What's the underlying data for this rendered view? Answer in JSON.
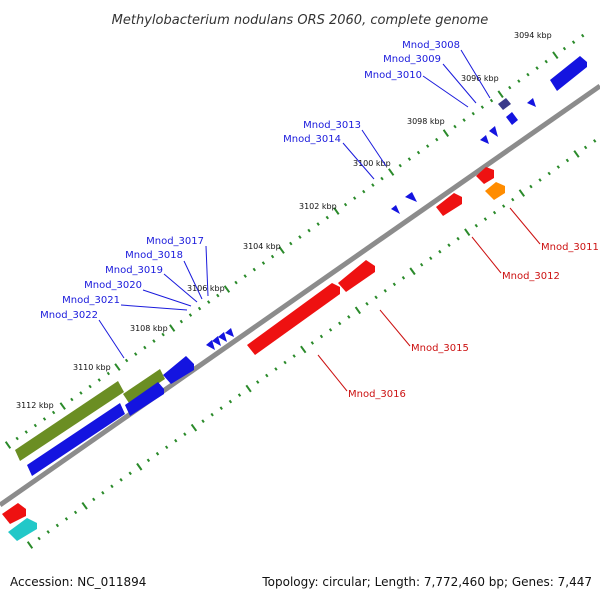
{
  "title": "Methylobacterium nodulans ORS 2060, complete genome",
  "footer": {
    "accession": "Accession: NC_011894",
    "summary": "Topology: circular; Length: 7,772,460 bp; Genes: 7,447"
  },
  "colors": {
    "backbone": "#8c8c8c",
    "tick": "#2a8a2a",
    "gene_blue": "#1414e0",
    "gene_red": "#ee1111",
    "gene_olive": "#6b8e23",
    "gene_orange": "#ff8c00",
    "gene_navy": "#3b3b8a",
    "gene_cyan": "#22c8c8",
    "label_blue": "#1a1adc",
    "label_red": "#cc1111"
  },
  "ticks": [
    {
      "kbp": 3094,
      "label": "3094 kbp"
    },
    {
      "kbp": 3096,
      "label": "3096 kbp"
    },
    {
      "kbp": 3098,
      "label": "3098 kbp"
    },
    {
      "kbp": 3100,
      "label": "3100 kbp"
    },
    {
      "kbp": 3102,
      "label": "3102 kbp"
    },
    {
      "kbp": 3104,
      "label": "3104 kbp"
    },
    {
      "kbp": 3106,
      "label": "3106 kbp"
    },
    {
      "kbp": 3108,
      "label": "3108 kbp"
    },
    {
      "kbp": 3110,
      "label": "3110 kbp"
    },
    {
      "kbp": 3112,
      "label": "3112 kbp"
    }
  ],
  "labels_top": [
    {
      "text": "Mnod_3008"
    },
    {
      "text": "Mnod_3009"
    },
    {
      "text": "Mnod_3010"
    },
    {
      "text": "Mnod_3013"
    },
    {
      "text": "Mnod_3014"
    },
    {
      "text": "Mnod_3017"
    },
    {
      "text": "Mnod_3018"
    },
    {
      "text": "Mnod_3019"
    },
    {
      "text": "Mnod_3020"
    },
    {
      "text": "Mnod_3021"
    },
    {
      "text": "Mnod_3022"
    }
  ],
  "labels_bottom": [
    {
      "text": "Mnod_3011"
    },
    {
      "text": "Mnod_3012"
    },
    {
      "text": "Mnod_3015"
    },
    {
      "text": "Mnod_3016"
    }
  ]
}
